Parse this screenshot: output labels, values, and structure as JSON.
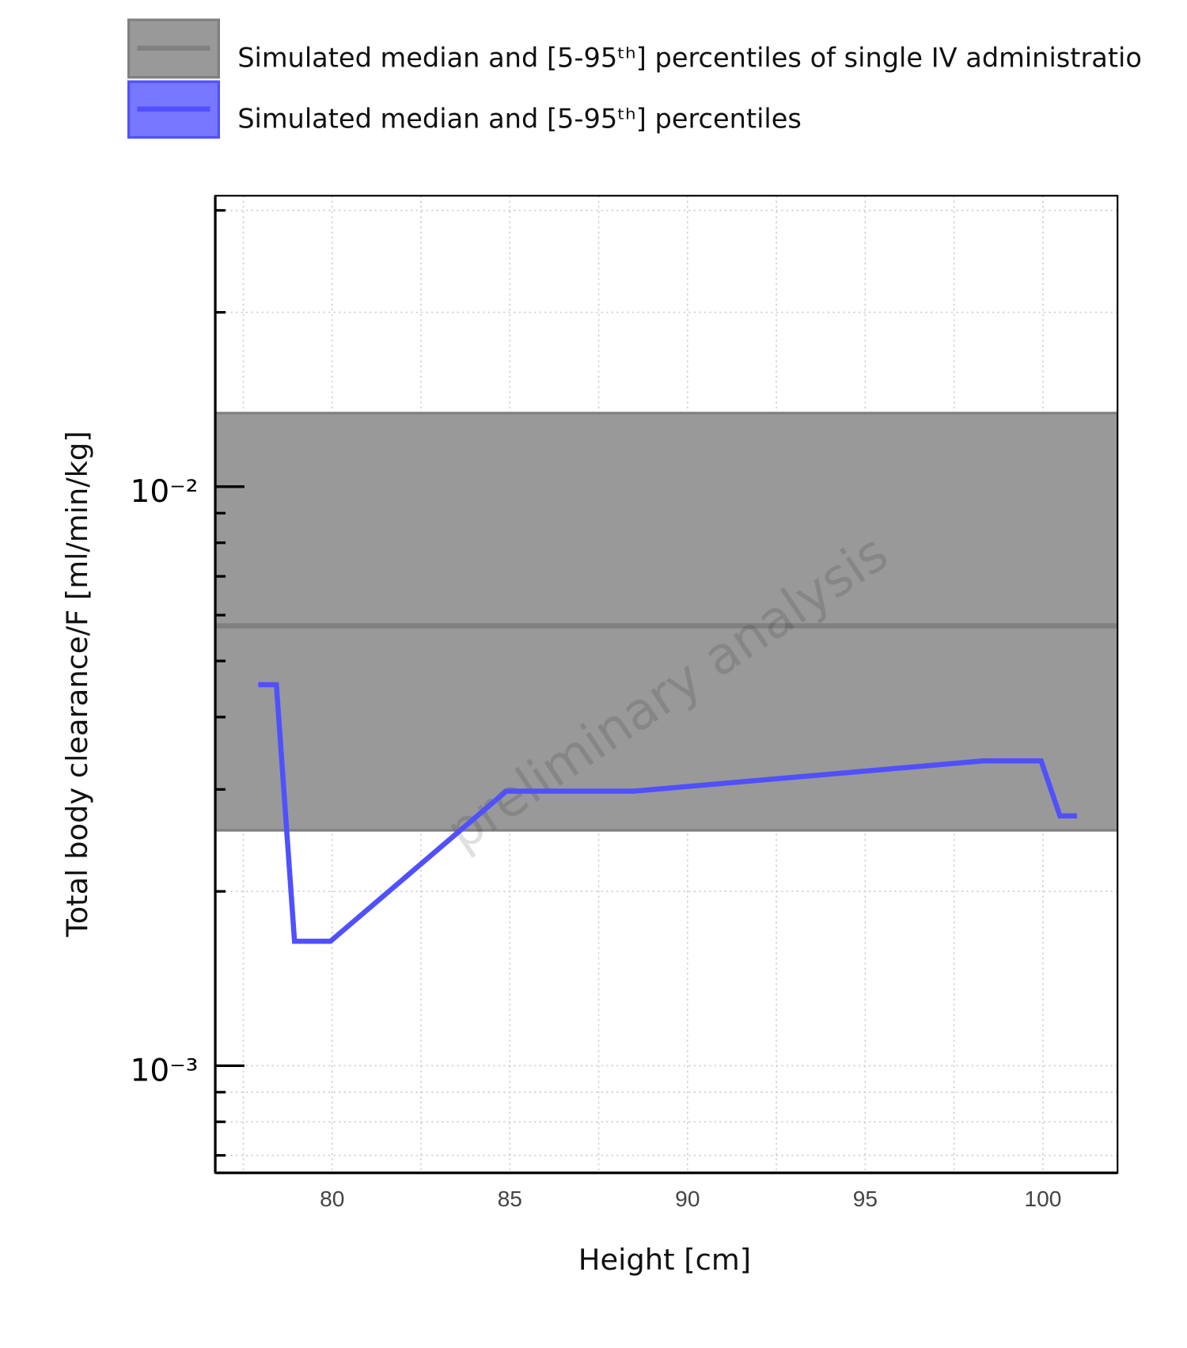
{
  "chart_data": {
    "type": "line",
    "xlabel": "Height [cm]",
    "ylabel": "Total body clearance/F [ml/min/kg]",
    "watermark": "preliminary analysis",
    "xlim": [
      76.71,
      102.1
    ],
    "xticks": [
      80,
      85,
      90,
      95,
      100
    ],
    "x_minor_ticks": [
      77.5,
      82.5,
      87.5,
      92.5,
      97.5
    ],
    "ylim": [
      0.000653,
      0.0318
    ],
    "ylog": true,
    "yticks": [
      {
        "value": 0.001,
        "label": "10⁻³"
      },
      {
        "value": 0.01,
        "label": "10⁻²"
      }
    ],
    "y_minor_ticks": [
      0.0007,
      0.0008,
      0.0009,
      0.002,
      0.003,
      0.004,
      0.005,
      0.006,
      0.007,
      0.008,
      0.009,
      0.02,
      0.03
    ],
    "grid": true,
    "reference": {
      "name": "Simulated median and [5-95ᵗʰ] percentiles of single IV administratio",
      "color": "#808080",
      "fill": "#999999",
      "median": 0.00575,
      "lower": 0.00255,
      "upper": 0.0134
    },
    "series": [
      {
        "name": "Simulated median and [5-95ᵗʰ] percentiles",
        "color": "#5050ff",
        "x": [
          77.92,
          78.43,
          78.94,
          79.95,
          84.9,
          88.5,
          98.31,
          99.95,
          100.48,
          100.96
        ],
        "values": [
          0.00455,
          0.00455,
          0.00164,
          0.00164,
          0.00298,
          0.00298,
          0.00336,
          0.00336,
          0.0027,
          0.0027
        ]
      }
    ]
  }
}
